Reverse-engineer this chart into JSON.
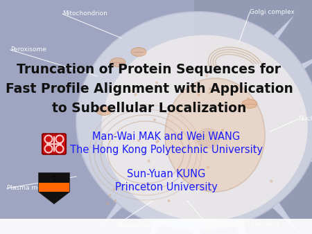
{
  "title_line1": "Truncation of Protein Sequences for",
  "title_line2": "Fast Profile Alignment with Application",
  "title_line3": "to Subcellular Localization",
  "author_line1": "Man-Wai MAK and Wei WANG",
  "author_line2": "The Hong Kong Polytechnic University",
  "author_line3": "Sun-Yuan KUNG",
  "author_line4": "Princeton University",
  "title_color": "#111111",
  "author_color": "#1a1aff",
  "bg_color": "#9fa5c0",
  "label_color": "#ffffff",
  "figsize": [
    4.5,
    3.38
  ],
  "dpi": 100,
  "title_fontsize": 13.5,
  "author_fontsize": 10.5,
  "label_fontsize": 6.5
}
